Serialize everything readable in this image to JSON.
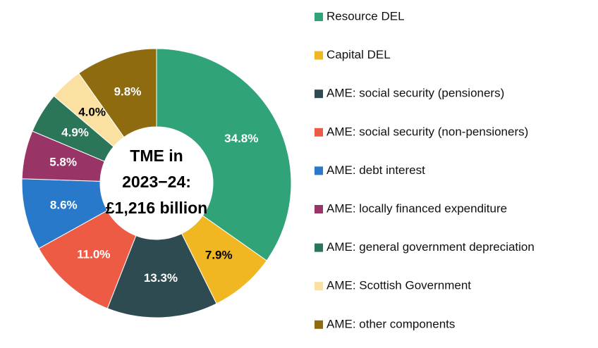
{
  "chart_data": {
    "type": "donut",
    "center_text": [
      "TME in",
      "2023−24:",
      "£1,216 billion"
    ],
    "categories": [
      "Resource DEL",
      "Capital DEL",
      "AME: social security (pensioners)",
      "AME: social security (non-pensioners)",
      "AME: debt interest",
      "AME: locally financed expenditure",
      "AME: general government depreciation",
      "AME: Scottish Government",
      "AME: other components"
    ],
    "values": [
      34.8,
      7.9,
      13.3,
      11.0,
      8.6,
      5.8,
      4.9,
      4.0,
      9.8
    ],
    "value_labels": [
      "34.8%",
      "7.9%",
      "13.3%",
      "11.0%",
      "8.6%",
      "5.8%",
      "4.9%",
      "4.0%",
      "9.8%"
    ],
    "colors": [
      "#30a378",
      "#f0b722",
      "#2f4b52",
      "#ee5b45",
      "#2879c9",
      "#983466",
      "#2b7558",
      "#fbe1a1",
      "#8f6b10"
    ],
    "legend": "right"
  }
}
